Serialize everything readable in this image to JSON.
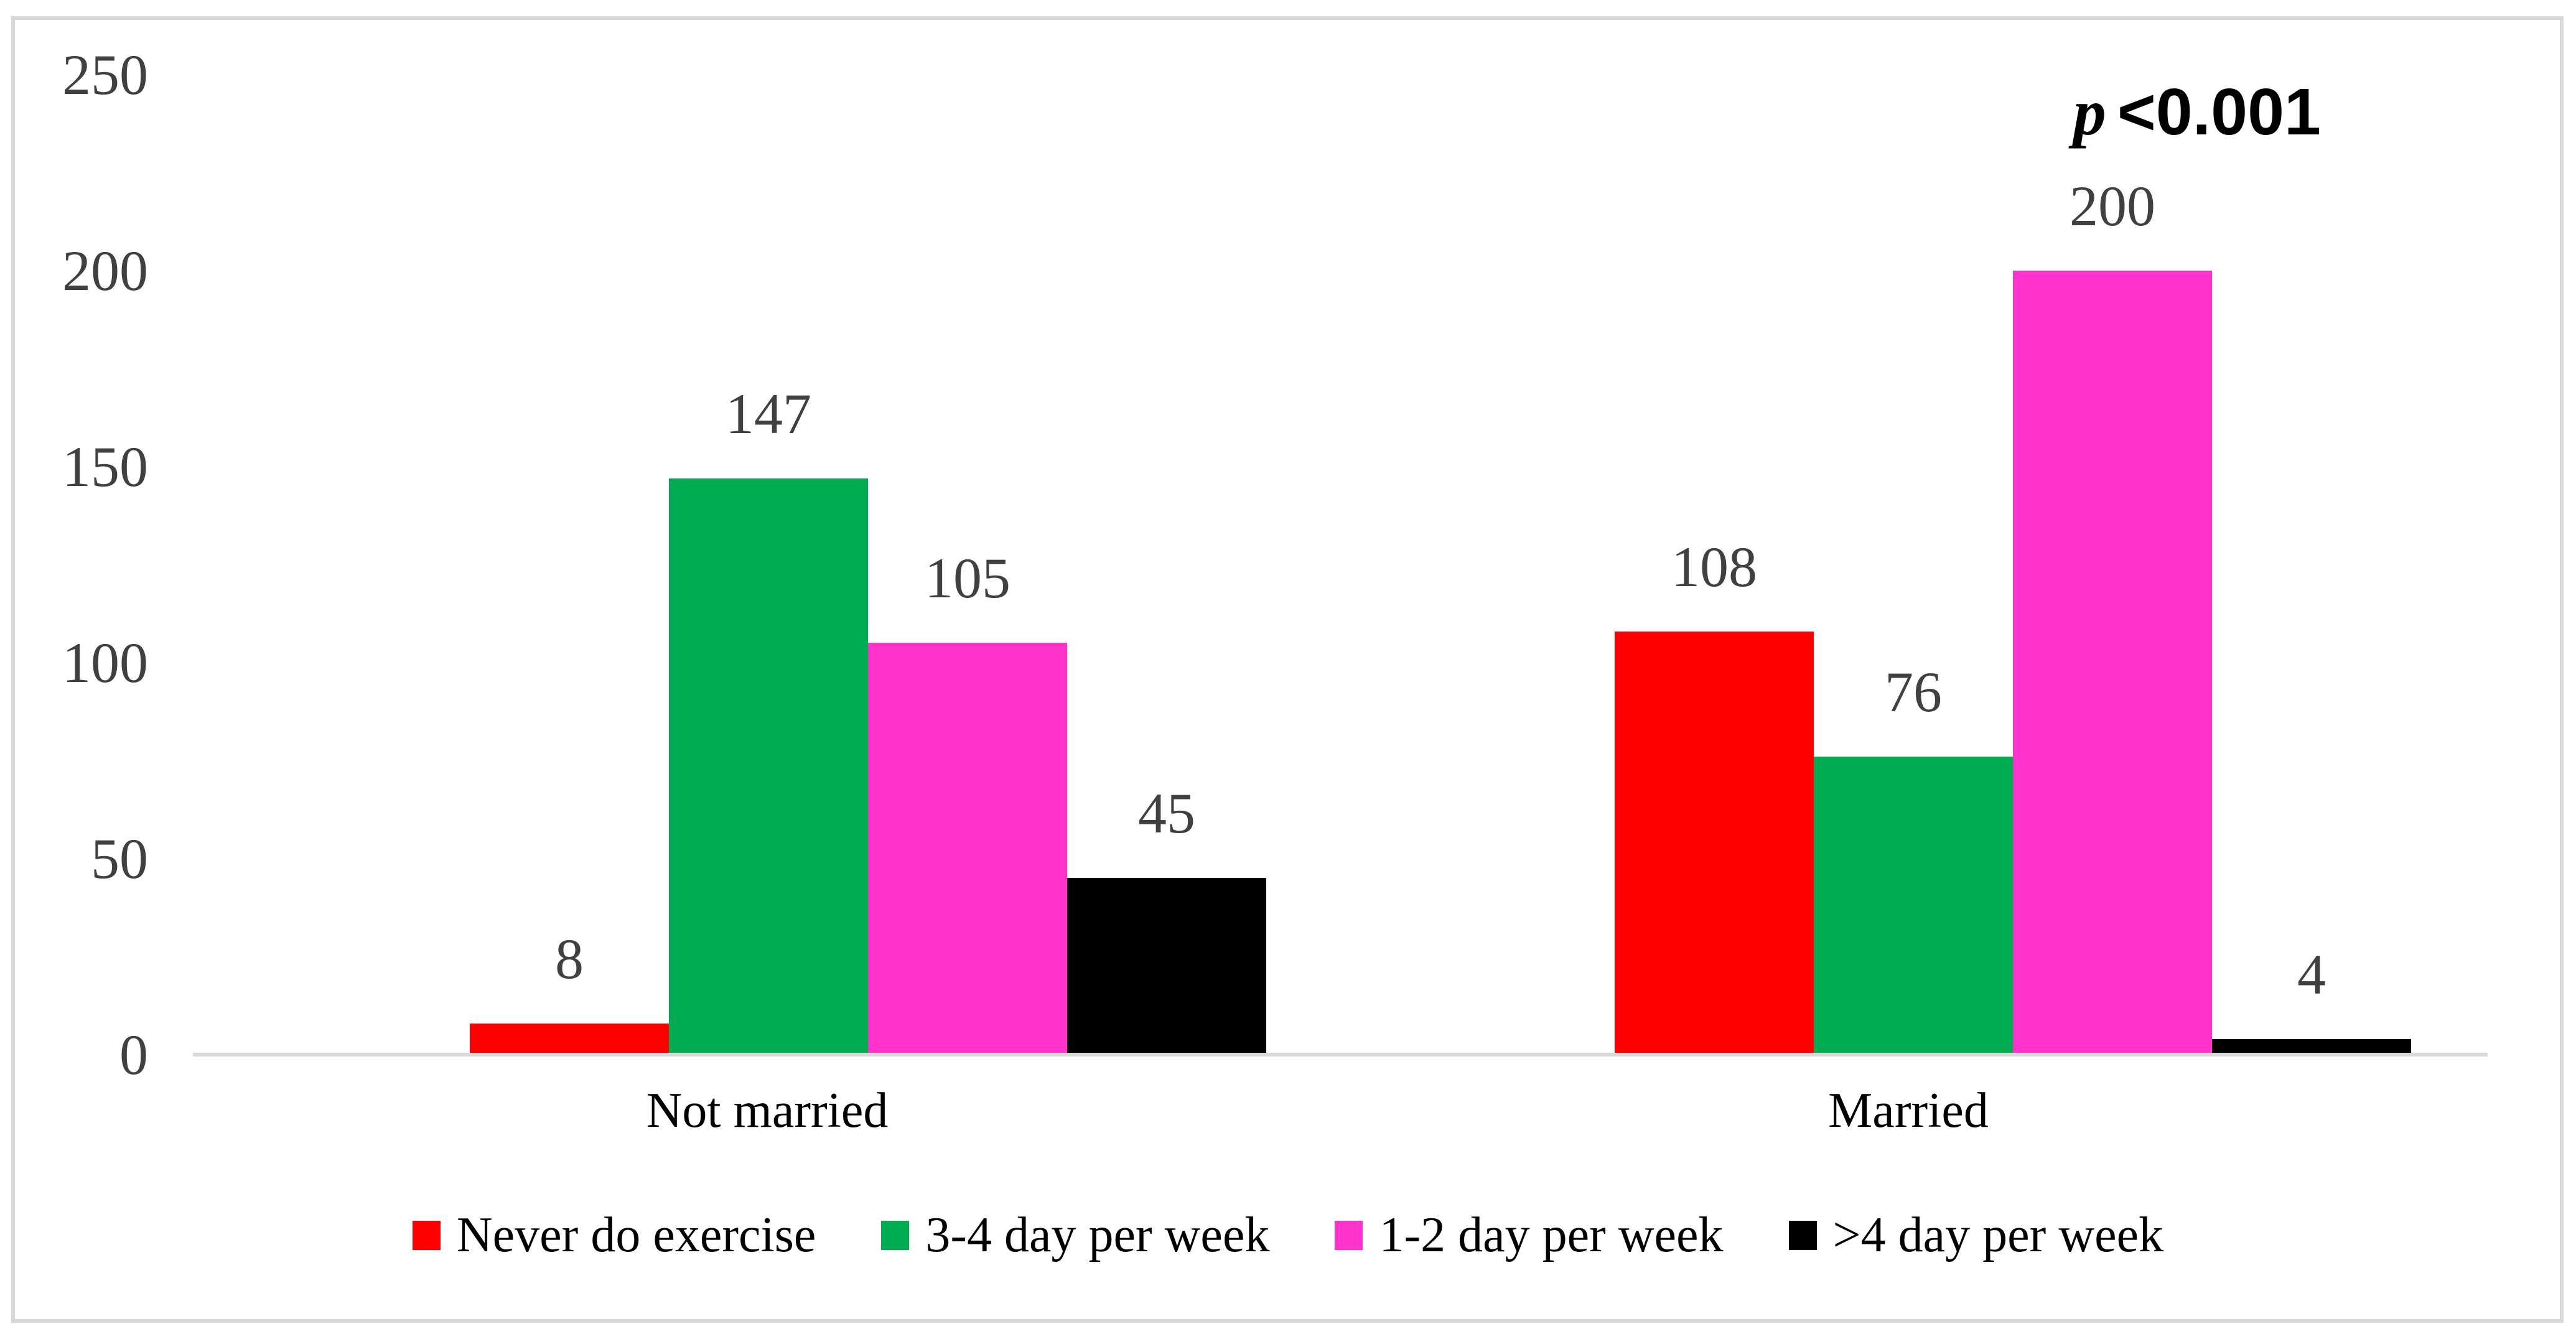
{
  "chart_data": {
    "type": "bar",
    "title": "",
    "xlabel": "",
    "ylabel": "",
    "categories": [
      "Not married",
      "Married"
    ],
    "series": [
      {
        "name": "Never do exercise",
        "color": "#ff0000",
        "values": [
          8,
          108
        ]
      },
      {
        "name": "3-4 day per week",
        "color": "#00ab52",
        "values": [
          147,
          76
        ]
      },
      {
        "name": "1-2 day per week",
        "color": "#ff33cc",
        "values": [
          105,
          200
        ]
      },
      {
        "name": ">4 day per week",
        "color": "#000000",
        "values": [
          45,
          4
        ]
      }
    ],
    "ylim": [
      0,
      250
    ],
    "yticks": [
      0,
      50,
      100,
      150,
      200,
      250
    ],
    "grid": false,
    "legend_position": "bottom",
    "annotation": {
      "p": "p",
      "value": "<0.001"
    },
    "axis_color": "#d9d9d9",
    "tick_label_color": "#404040",
    "data_label_color": "#404040"
  }
}
